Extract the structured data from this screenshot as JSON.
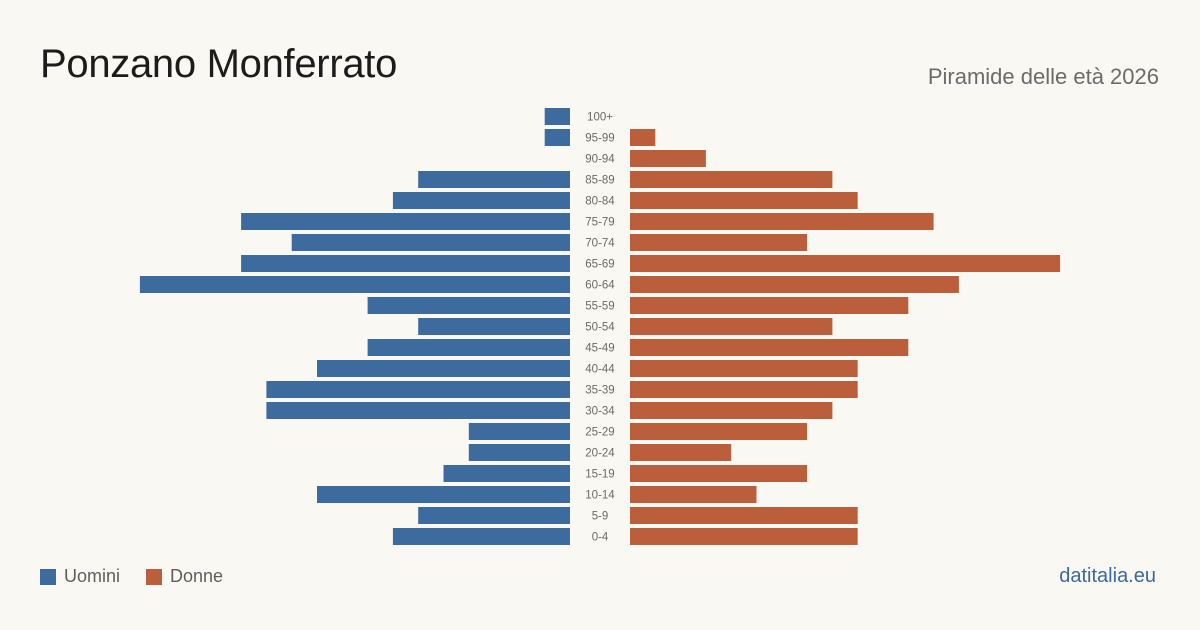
{
  "title": "Ponzano Monferrato",
  "subtitle": "Piramide delle età 2026",
  "brand": "datitalia.eu",
  "colors": {
    "men": "#3d6b9d",
    "women": "#bb5e3c",
    "tick": "#6a6a6a"
  },
  "legend": {
    "men": "Uomini",
    "women": "Donne"
  },
  "chart_data": {
    "type": "bar",
    "orientation": "horizontal-pyramid",
    "categories": [
      "100+",
      "95-99",
      "90-94",
      "85-89",
      "80-84",
      "75-79",
      "70-74",
      "65-69",
      "60-64",
      "55-59",
      "50-54",
      "45-49",
      "40-44",
      "35-39",
      "30-34",
      "25-29",
      "20-24",
      "15-19",
      "10-14",
      "5-9",
      "0-4"
    ],
    "series": [
      {
        "name": "Uomini",
        "values": [
          1,
          1,
          0,
          6,
          7,
          13,
          11,
          13,
          17,
          8,
          6,
          8,
          10,
          12,
          12,
          4,
          4,
          5,
          10,
          6,
          7
        ]
      },
      {
        "name": "Donne",
        "values": [
          0,
          1,
          3,
          8,
          9,
          12,
          7,
          17,
          13,
          11,
          8,
          11,
          9,
          9,
          8,
          7,
          4,
          7,
          5,
          9,
          9
        ]
      }
    ]
  }
}
